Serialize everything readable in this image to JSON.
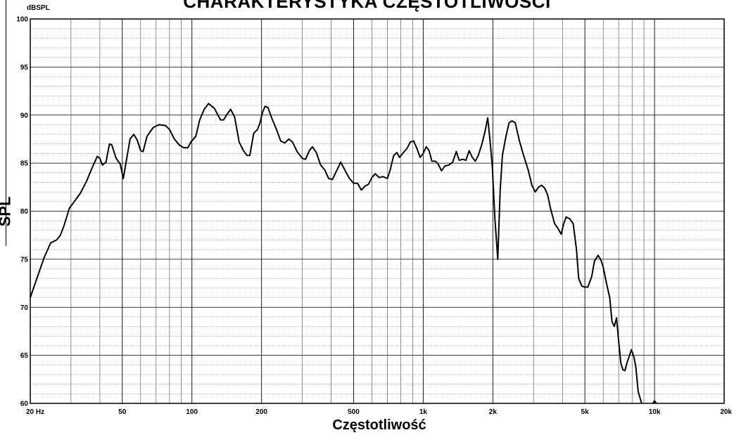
{
  "chart_data": {
    "type": "line",
    "title": "CHARAKTERYSTYKA CZĘSTOTLIWOŚCI",
    "xlabel": "Częstotliwość",
    "ylabel": "SPL",
    "y_unit": "dBSPL",
    "x_scale": "log",
    "xlim": [
      20,
      20000
    ],
    "ylim": [
      60,
      100
    ],
    "grid": true,
    "x_tick_labels": [
      {
        "value": 20,
        "label": "20 Hz"
      },
      {
        "value": 50,
        "label": "50"
      },
      {
        "value": 100,
        "label": "100"
      },
      {
        "value": 200,
        "label": "200"
      },
      {
        "value": 500,
        "label": "500"
      },
      {
        "value": 1000,
        "label": "1k"
      },
      {
        "value": 2000,
        "label": "2k"
      },
      {
        "value": 5000,
        "label": "5k"
      },
      {
        "value": 10000,
        "label": "10k"
      },
      {
        "value": 20000,
        "label": "20k"
      }
    ],
    "y_tick_labels": [
      {
        "value": 100,
        "label": "100"
      },
      {
        "value": 95,
        "label": "95"
      },
      {
        "value": 90,
        "label": "90"
      },
      {
        "value": 85,
        "label": "85"
      },
      {
        "value": 80,
        "label": "80"
      },
      {
        "value": 75,
        "label": "75"
      },
      {
        "value": 70,
        "label": "70"
      },
      {
        "value": 65,
        "label": "65"
      },
      {
        "value": 60,
        "label": "60"
      }
    ],
    "series": [
      {
        "color": "#000000",
        "points": [
          [
            20,
            71
          ],
          [
            21,
            72.5
          ],
          [
            23,
            75.2
          ],
          [
            24.5,
            76.7
          ],
          [
            26,
            77
          ],
          [
            27,
            77.5
          ],
          [
            28,
            78.5
          ],
          [
            29.5,
            80.3
          ],
          [
            31,
            81
          ],
          [
            33,
            81.9
          ],
          [
            35,
            83.1
          ],
          [
            37,
            84.5
          ],
          [
            39,
            85.7
          ],
          [
            40,
            85.5
          ],
          [
            41,
            84.8
          ],
          [
            42.5,
            85.1
          ],
          [
            44,
            87
          ],
          [
            45,
            86.9
          ],
          [
            47,
            85.5
          ],
          [
            49,
            84.9
          ],
          [
            50.5,
            83.4
          ],
          [
            52,
            85.2
          ],
          [
            54,
            87.5
          ],
          [
            56,
            88
          ],
          [
            58,
            87.4
          ],
          [
            60,
            86.3
          ],
          [
            61.5,
            86.2
          ],
          [
            64,
            87.8
          ],
          [
            68,
            88.7
          ],
          [
            72,
            89
          ],
          [
            77,
            88.9
          ],
          [
            80,
            88.5
          ],
          [
            84,
            87.5
          ],
          [
            88,
            86.9
          ],
          [
            92,
            86.6
          ],
          [
            96,
            86.6
          ],
          [
            99,
            87.2
          ],
          [
            104,
            87.8
          ],
          [
            108,
            89.5
          ],
          [
            113,
            90.6
          ],
          [
            118,
            91.2
          ],
          [
            125,
            90.7
          ],
          [
            133,
            89.5
          ],
          [
            137,
            89.5
          ],
          [
            142,
            90.1
          ],
          [
            147,
            90.6
          ],
          [
            153,
            89.8
          ],
          [
            160,
            87.2
          ],
          [
            167,
            86.3
          ],
          [
            173,
            85.8
          ],
          [
            178,
            85.8
          ],
          [
            185,
            88.1
          ],
          [
            192,
            88.5
          ],
          [
            197,
            89.2
          ],
          [
            202,
            90.3
          ],
          [
            207,
            90.9
          ],
          [
            213,
            90.8
          ],
          [
            222,
            89.6
          ],
          [
            232,
            88.5
          ],
          [
            242,
            87.3
          ],
          [
            252,
            87.1
          ],
          [
            262,
            87.5
          ],
          [
            272,
            87.2
          ],
          [
            285,
            86.2
          ],
          [
            300,
            85.5
          ],
          [
            310,
            85.4
          ],
          [
            322,
            86.3
          ],
          [
            332,
            86.7
          ],
          [
            345,
            86.1
          ],
          [
            360,
            84.8
          ],
          [
            375,
            84.3
          ],
          [
            390,
            83.4
          ],
          [
            405,
            83.3
          ],
          [
            420,
            84.1
          ],
          [
            440,
            85.1
          ],
          [
            460,
            84.2
          ],
          [
            480,
            83.4
          ],
          [
            500,
            82.9
          ],
          [
            520,
            82.9
          ],
          [
            540,
            82.2
          ],
          [
            560,
            82.6
          ],
          [
            580,
            82.8
          ],
          [
            600,
            83.5
          ],
          [
            620,
            83.9
          ],
          [
            645,
            83.5
          ],
          [
            670,
            83.6
          ],
          [
            700,
            83.4
          ],
          [
            720,
            84.3
          ],
          [
            745,
            85.8
          ],
          [
            770,
            86.1
          ],
          [
            790,
            85.6
          ],
          [
            820,
            86.1
          ],
          [
            850,
            86.5
          ],
          [
            880,
            87.2
          ],
          [
            910,
            87.3
          ],
          [
            940,
            86.5
          ],
          [
            970,
            85.6
          ],
          [
            1000,
            86
          ],
          [
            1030,
            86.7
          ],
          [
            1060,
            86.3
          ],
          [
            1090,
            85.2
          ],
          [
            1130,
            85.2
          ],
          [
            1160,
            84.9
          ],
          [
            1200,
            84.2
          ],
          [
            1240,
            84.7
          ],
          [
            1290,
            84.8
          ],
          [
            1340,
            85.1
          ],
          [
            1390,
            86.2
          ],
          [
            1430,
            85.3
          ],
          [
            1480,
            85.4
          ],
          [
            1530,
            85.3
          ],
          [
            1580,
            86.3
          ],
          [
            1630,
            85.6
          ],
          [
            1680,
            85.2
          ],
          [
            1730,
            85.8
          ],
          [
            1790,
            86.9
          ],
          [
            1850,
            88.3
          ],
          [
            1900,
            89.7
          ],
          [
            1940,
            87.6
          ],
          [
            1990,
            84.6
          ],
          [
            2040,
            79.3
          ],
          [
            2100,
            75
          ],
          [
            2150,
            82.1
          ],
          [
            2200,
            85.8
          ],
          [
            2280,
            87.8
          ],
          [
            2350,
            89.2
          ],
          [
            2420,
            89.4
          ],
          [
            2500,
            89.2
          ],
          [
            2600,
            87.4
          ],
          [
            2700,
            86
          ],
          [
            2850,
            84.2
          ],
          [
            2950,
            82.7
          ],
          [
            3050,
            82
          ],
          [
            3150,
            82.5
          ],
          [
            3250,
            82.7
          ],
          [
            3350,
            82.4
          ],
          [
            3450,
            81.7
          ],
          [
            3550,
            80.3
          ],
          [
            3700,
            78.7
          ],
          [
            3800,
            78.3
          ],
          [
            3950,
            77.6
          ],
          [
            4050,
            78.7
          ],
          [
            4150,
            79.4
          ],
          [
            4300,
            79.2
          ],
          [
            4450,
            78.7
          ],
          [
            4600,
            76
          ],
          [
            4700,
            73
          ],
          [
            4850,
            72.2
          ],
          [
            5000,
            72.1
          ],
          [
            5150,
            72.1
          ],
          [
            5350,
            73.2
          ],
          [
            5500,
            74.8
          ],
          [
            5700,
            75.4
          ],
          [
            5850,
            75
          ],
          [
            6000,
            74.2
          ],
          [
            6200,
            72.5
          ],
          [
            6400,
            71
          ],
          [
            6550,
            68.5
          ],
          [
            6700,
            68
          ],
          [
            6850,
            68.9
          ],
          [
            7000,
            66.4
          ],
          [
            7150,
            64.2
          ],
          [
            7300,
            63.5
          ],
          [
            7450,
            63.4
          ],
          [
            7600,
            64.2
          ],
          [
            7800,
            65
          ],
          [
            7950,
            65.6
          ],
          [
            8150,
            64.8
          ],
          [
            8300,
            63.8
          ],
          [
            8500,
            61.2
          ],
          [
            8800,
            60
          ]
        ]
      }
    ],
    "marker": {
      "x": 10000,
      "y": 60
    }
  }
}
